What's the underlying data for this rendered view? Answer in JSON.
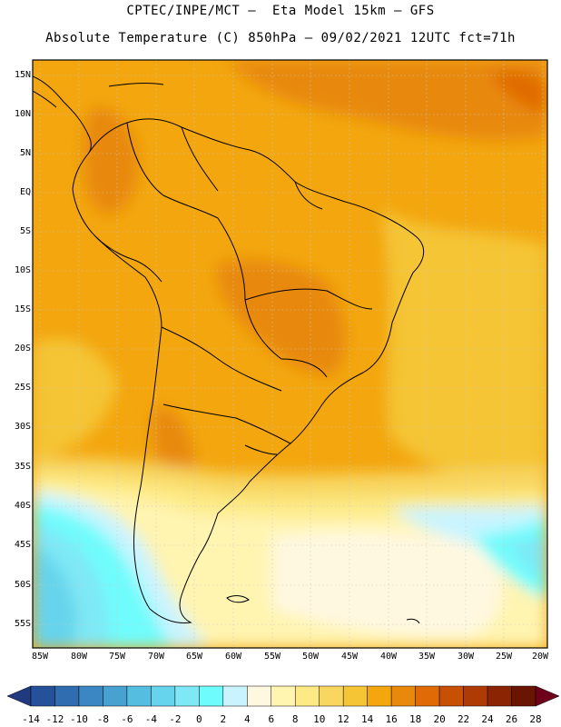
{
  "header": {
    "line1": "CPTEC/INPE/MCT –  Eta Model 15km – GFS",
    "line2": "Absolute Temperature (C) 850hPa – 09/02/2021 12UTC fct=71h"
  },
  "lat_labels": [
    "15N",
    "10N",
    "5N",
    "EQ",
    "5S",
    "10S",
    "15S",
    "20S",
    "25S",
    "30S",
    "35S",
    "40S",
    "45S",
    "50S",
    "55S"
  ],
  "lon_labels": [
    "85W",
    "80W",
    "75W",
    "70W",
    "65W",
    "60W",
    "55W",
    "50W",
    "45W",
    "40W",
    "35W",
    "30W",
    "25W",
    "20W"
  ],
  "colorbar": {
    "labels": [
      "-14",
      "-12",
      "-10",
      "-8",
      "-6",
      "-4",
      "-2",
      "0",
      "2",
      "4",
      "6",
      "8",
      "10",
      "12",
      "14",
      "16",
      "18",
      "20",
      "22",
      "24",
      "26",
      "28"
    ],
    "colors": [
      "#1f3a7e",
      "#25509a",
      "#2f6cb0",
      "#3b87c3",
      "#47a2d2",
      "#55bde0",
      "#66d4ec",
      "#7fe8f6",
      "#6ffcfc",
      "#c9f4ff",
      "#fff8e0",
      "#fff4b0",
      "#fdea85",
      "#f8d660",
      "#f5c535",
      "#f3a60e",
      "#e8890c",
      "#e06a05",
      "#c85003",
      "#b03a03",
      "#8a2402",
      "#6a1402",
      "#6e001a"
    ],
    "min_value": -14,
    "max_value": 28
  }
}
